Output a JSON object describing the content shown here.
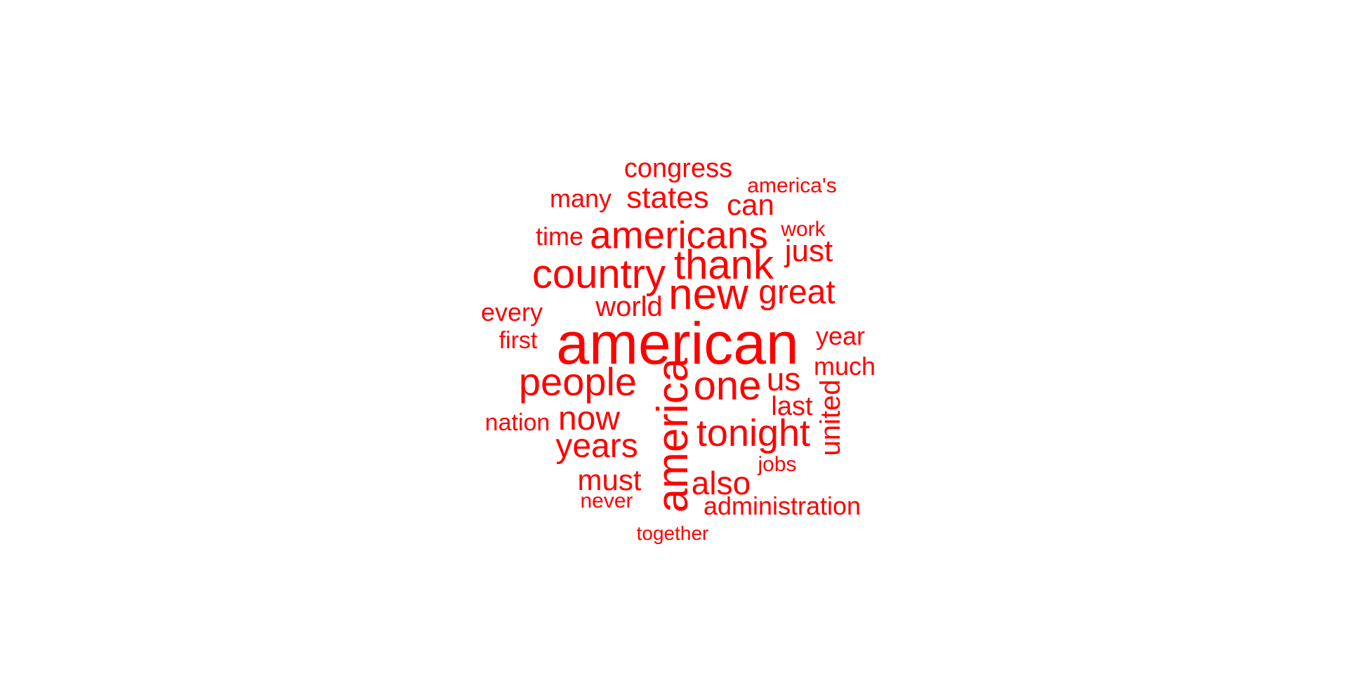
{
  "color": "#ff0000",
  "words": [
    {
      "text": "congress",
      "freq": 40
    },
    {
      "text": "america's",
      "freq": 30
    },
    {
      "text": "many",
      "freq": 36
    },
    {
      "text": "states",
      "freq": 44
    },
    {
      "text": "can",
      "freq": 42
    },
    {
      "text": "time",
      "freq": 36
    },
    {
      "text": "americans",
      "freq": 56
    },
    {
      "text": "work",
      "freq": 30
    },
    {
      "text": "just",
      "freq": 44
    },
    {
      "text": "country",
      "freq": 58
    },
    {
      "text": "thank",
      "freq": 60
    },
    {
      "text": "new",
      "freq": 62
    },
    {
      "text": "great",
      "freq": 48
    },
    {
      "text": "every",
      "freq": 36
    },
    {
      "text": "world",
      "freq": 40
    },
    {
      "text": "first",
      "freq": 34
    },
    {
      "text": "american",
      "freq": 100
    },
    {
      "text": "year",
      "freq": 36
    },
    {
      "text": "much",
      "freq": 36
    },
    {
      "text": "people",
      "freq": 56
    },
    {
      "text": "america",
      "freq": 68
    },
    {
      "text": "one",
      "freq": 58
    },
    {
      "text": "us",
      "freq": 46
    },
    {
      "text": "last",
      "freq": 38
    },
    {
      "text": "united",
      "freq": 40
    },
    {
      "text": "nation",
      "freq": 34
    },
    {
      "text": "now",
      "freq": 48
    },
    {
      "text": "tonight",
      "freq": 56
    },
    {
      "text": "years",
      "freq": 48
    },
    {
      "text": "jobs",
      "freq": 30
    },
    {
      "text": "must",
      "freq": 42
    },
    {
      "text": "also",
      "freq": 46
    },
    {
      "text": "never",
      "freq": 30
    },
    {
      "text": "administration",
      "freq": 36
    },
    {
      "text": "together",
      "freq": 28
    }
  ]
}
